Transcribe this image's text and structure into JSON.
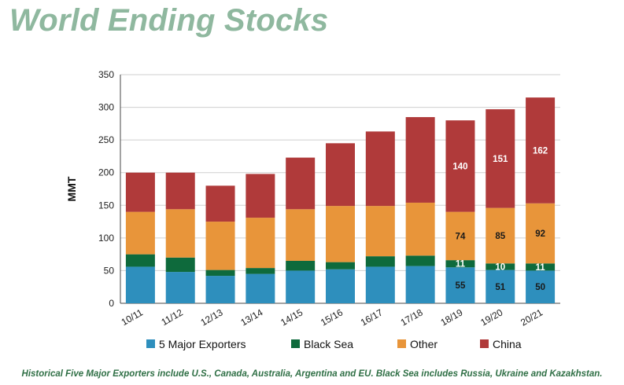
{
  "title": "World Ending Stocks",
  "footnote": "Historical Five Major Exporters include U.S., Canada, Australia, Argentina and EU. Black Sea includes Russia, Ukraine and Kazakhstan.",
  "chart_data": {
    "type": "bar",
    "stacked": true,
    "ylabel": "MMT",
    "xlabel": "",
    "ylim": [
      0,
      350
    ],
    "yticks": [
      0,
      50,
      100,
      150,
      200,
      250,
      300,
      350
    ],
    "grid": true,
    "legend_position": "bottom",
    "categories": [
      "10/11",
      "11/12",
      "12/13",
      "13/14",
      "14/15",
      "15/16",
      "16/17",
      "17/18",
      "18/19",
      "19/20",
      "20/21"
    ],
    "series": [
      {
        "name": "5 Major Exporters",
        "color": "#2e8fbd",
        "values": [
          56,
          48,
          42,
          45,
          50,
          52,
          56,
          57,
          55,
          51,
          50
        ]
      },
      {
        "name": "Black Sea",
        "color": "#0e6a3c",
        "values": [
          19,
          22,
          9,
          9,
          15,
          11,
          16,
          16,
          11,
          10,
          11
        ]
      },
      {
        "name": "Other",
        "color": "#e8953a",
        "values": [
          65,
          74,
          74,
          77,
          79,
          86,
          77,
          81,
          74,
          85,
          92
        ]
      },
      {
        "name": "China",
        "color": "#b03a3a",
        "values": [
          60,
          56,
          55,
          67,
          79,
          96,
          114,
          131,
          140,
          151,
          162
        ]
      }
    ],
    "data_labels": [
      {
        "category": "18/19",
        "series": "5 Major Exporters",
        "text": "55"
      },
      {
        "category": "18/19",
        "series": "Black Sea",
        "text": "11"
      },
      {
        "category": "18/19",
        "series": "Other",
        "text": "74"
      },
      {
        "category": "18/19",
        "series": "China",
        "text": "140"
      },
      {
        "category": "19/20",
        "series": "5 Major Exporters",
        "text": "51"
      },
      {
        "category": "19/20",
        "series": "Black Sea",
        "text": "10"
      },
      {
        "category": "19/20",
        "series": "Other",
        "text": "85"
      },
      {
        "category": "19/20",
        "series": "China",
        "text": "151"
      },
      {
        "category": "20/21",
        "series": "5 Major Exporters",
        "text": "50"
      },
      {
        "category": "20/21",
        "series": "Black Sea",
        "text": "11"
      },
      {
        "category": "20/21",
        "series": "Other",
        "text": "92"
      },
      {
        "category": "20/21",
        "series": "China",
        "text": "162"
      }
    ]
  }
}
